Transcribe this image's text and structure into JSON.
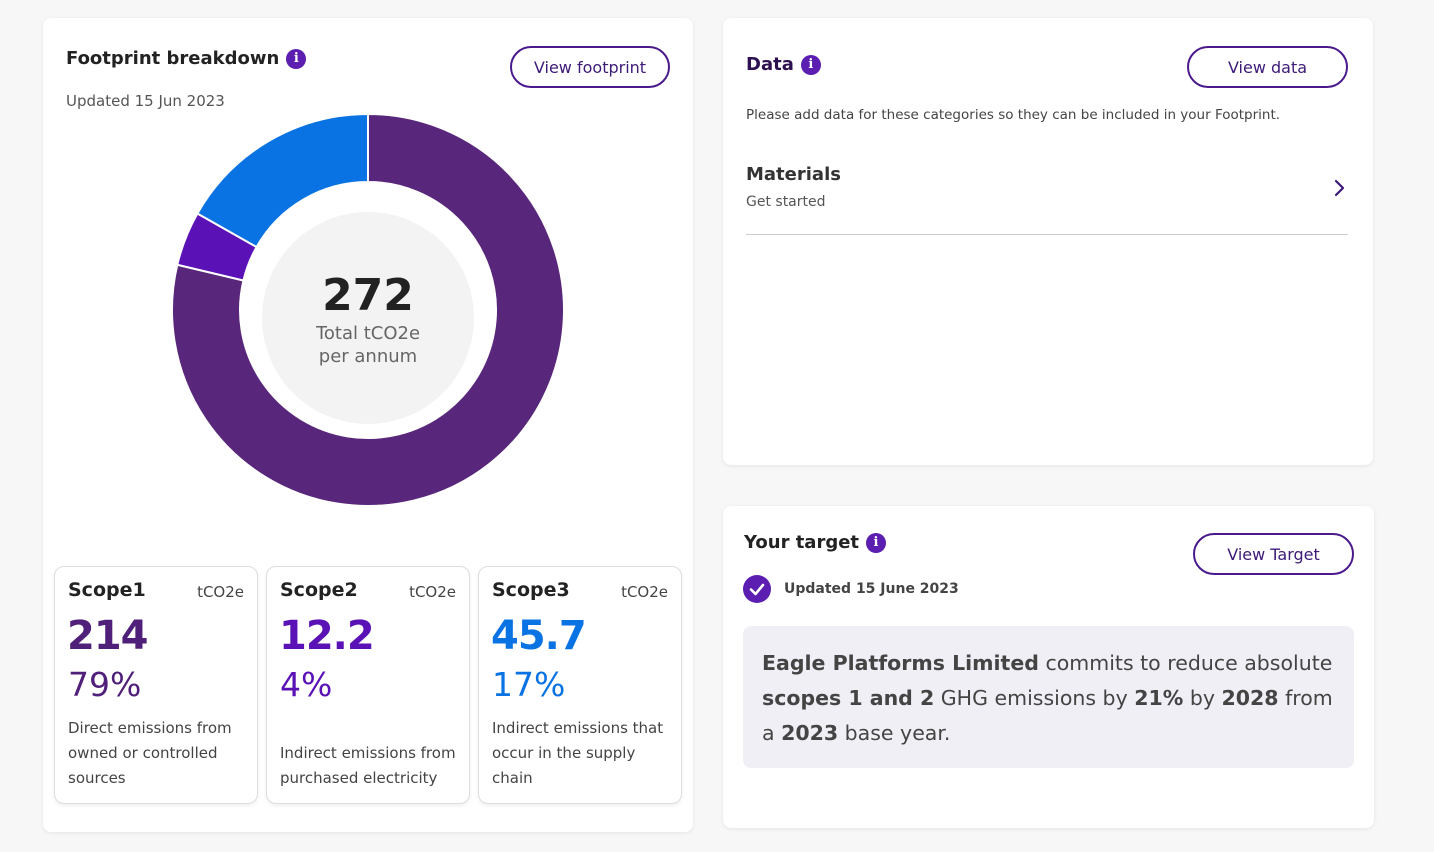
{
  "footprint": {
    "title": "Footprint breakdown",
    "updated": "Updated 15 Jun 2023",
    "view_button": "View footprint",
    "total_value": "272",
    "total_label_line1": "Total tCO2e",
    "total_label_line2": "per annum",
    "chart_data": {
      "type": "pie",
      "categories": [
        "Scope1",
        "Scope2",
        "Scope3"
      ],
      "values": [
        214,
        12.2,
        45.7
      ],
      "colors": [
        "#58267a",
        "#5a11b5",
        "#0a73e3"
      ]
    },
    "scopes": [
      {
        "name": "Scope1",
        "unit": "tCO2e",
        "value": "214",
        "percent": "79%",
        "description": "Direct emissions from owned or controlled sources",
        "color": "#4f1f7a"
      },
      {
        "name": "Scope2",
        "unit": "tCO2e",
        "value": "12.2",
        "percent": "4%",
        "description": "Indirect emissions from purchased electricity",
        "color": "#5a11b5"
      },
      {
        "name": "Scope3",
        "unit": "tCO2e",
        "value": "45.7",
        "percent": "17%",
        "description": "Indirect emissions that occur in the supply chain",
        "color": "#0a73e3"
      }
    ]
  },
  "data_card": {
    "title": "Data",
    "view_button": "View data",
    "description": "Please add data for these categories so they can be included in your Footprint.",
    "items": [
      {
        "title": "Materials",
        "subtitle": "Get started"
      }
    ]
  },
  "target": {
    "title": "Your target",
    "view_button": "View Target",
    "updated": "Updated 15 June 2023",
    "statement": {
      "company": "Eagle Platforms Limited",
      "text1": " commits to reduce absolute ",
      "scopes": "scopes 1 and 2",
      "text2": " GHG emissions by ",
      "percent": "21%",
      "text3": " by ",
      "year": "2028",
      "text4": " from a ",
      "base_year": "2023",
      "text5": " base year."
    }
  },
  "icons": {
    "info": "info-icon",
    "chevron": "chevron-right-icon",
    "check": "check-circle-icon"
  }
}
